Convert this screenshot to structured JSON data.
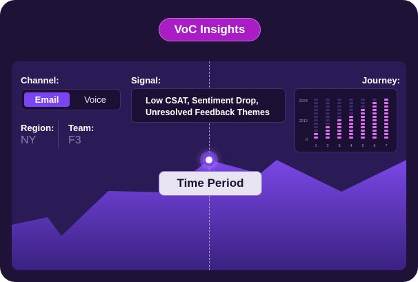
{
  "header": {
    "title": "VoC Insights"
  },
  "filters": {
    "channel": {
      "label": "Channel:",
      "options": [
        "Email",
        "Voice"
      ],
      "selected": "Email"
    },
    "signal": {
      "label": "Signal:",
      "line1": "Low CSAT, Sentiment Drop,",
      "line2": "Unresolved Feedback Themes"
    },
    "region": {
      "label": "Region:",
      "value": "NY"
    },
    "team": {
      "label": "Team:",
      "value": "F3"
    },
    "journey": {
      "label": "Journey:"
    }
  },
  "timeline": {
    "label": "Time Period"
  },
  "colors": {
    "accent": "#7a44f0",
    "title_pill": "#a81ec4",
    "journey_bars": "#e36cf0"
  },
  "chart_data": {
    "type": "bar",
    "categories": [
      "1",
      "2",
      "3",
      "4",
      "5",
      "6",
      "7"
    ],
    "y_tick_labels": [
      "2024",
      "2012",
      "0"
    ],
    "values": [
      3,
      5,
      7,
      9,
      11,
      13,
      15
    ],
    "max_value": 15,
    "grid": false
  }
}
